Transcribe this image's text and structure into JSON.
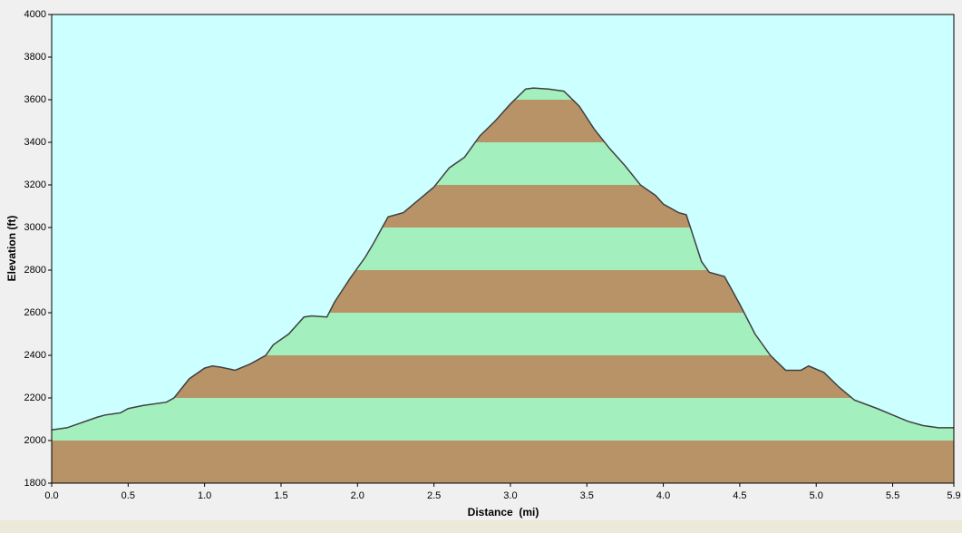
{
  "chart_data": {
    "type": "elevation-area",
    "xlabel": "Distance  (mi)",
    "ylabel": "Elevation (ft)",
    "x": [
      0.0,
      0.1,
      0.3,
      0.35,
      0.45,
      0.5,
      0.6,
      0.75,
      0.8,
      0.9,
      1.0,
      1.05,
      1.1,
      1.2,
      1.3,
      1.4,
      1.45,
      1.55,
      1.65,
      1.7,
      1.8,
      1.85,
      1.95,
      2.05,
      2.1,
      2.2,
      2.3,
      2.4,
      2.5,
      2.6,
      2.7,
      2.8,
      2.9,
      3.0,
      3.1,
      3.15,
      3.25,
      3.35,
      3.45,
      3.55,
      3.65,
      3.75,
      3.85,
      3.95,
      4.0,
      4.1,
      4.15,
      4.2,
      4.25,
      4.3,
      4.4,
      4.5,
      4.6,
      4.65,
      4.7,
      4.8,
      4.9,
      4.95,
      5.05,
      5.15,
      5.25,
      5.4,
      5.5,
      5.6,
      5.7,
      5.8,
      5.9
    ],
    "series": [
      {
        "name": "Elevation",
        "color": "#404040",
        "values": [
          2050,
          2060,
          2110,
          2120,
          2130,
          2150,
          2165,
          2180,
          2200,
          2290,
          2340,
          2350,
          2345,
          2330,
          2360,
          2400,
          2450,
          2500,
          2580,
          2585,
          2580,
          2650,
          2760,
          2860,
          2920,
          3050,
          3070,
          3130,
          3190,
          3280,
          3330,
          3430,
          3500,
          3580,
          3650,
          3655,
          3650,
          3640,
          3570,
          3460,
          3370,
          3290,
          3200,
          3150,
          3110,
          3070,
          3060,
          2950,
          2840,
          2790,
          2770,
          2640,
          2500,
          2450,
          2400,
          2330,
          2330,
          2350,
          2320,
          2250,
          2190,
          2150,
          2120,
          2090,
          2070,
          2060,
          2060
        ]
      }
    ],
    "band_colors": [
      "#b89368",
      "#a3efbd"
    ],
    "background": "#ccffff",
    "xlim": [
      0,
      5.9
    ],
    "ylim": [
      1800,
      4000
    ],
    "xticks": [
      {
        "value": 0,
        "label": "0.0"
      },
      0.5,
      {
        "value": 1,
        "label": "1.0"
      },
      1.5,
      {
        "value": 2,
        "label": "2.0"
      },
      2.5,
      {
        "value": 3,
        "label": "3.0"
      },
      3.5,
      {
        "value": 4,
        "label": "4.0"
      },
      4.5,
      {
        "value": 5,
        "label": "5.0"
      },
      5.5,
      5.9
    ],
    "yticks": [
      1800,
      2000,
      2200,
      2400,
      2600,
      2800,
      3000,
      3200,
      3400,
      3600,
      3800,
      4000
    ]
  }
}
